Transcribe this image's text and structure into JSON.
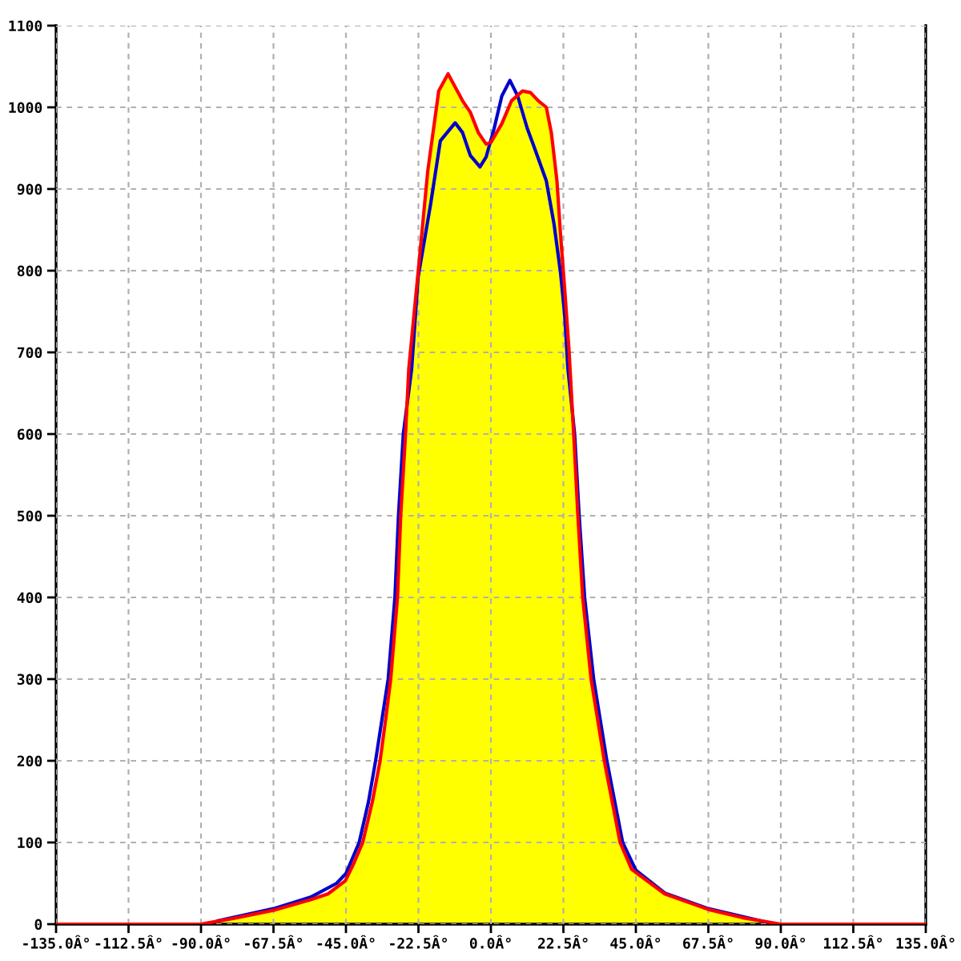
{
  "chart_data": {
    "type": "area",
    "xlim": [
      -135,
      135
    ],
    "xticks": [
      {
        "value": -135,
        "label": "-135.0Â°"
      },
      {
        "value": -112.5,
        "label": "-112.5Â°"
      },
      {
        "value": -90,
        "label": "-90.0Â°"
      },
      {
        "value": -67.5,
        "label": "-67.5Â°"
      },
      {
        "value": -45,
        "label": "-45.0Â°"
      },
      {
        "value": -22.5,
        "label": "-22.5Â°"
      },
      {
        "value": 0,
        "label": "0.0Â°"
      },
      {
        "value": 22.5,
        "label": "22.5Â°"
      },
      {
        "value": 45,
        "label": "45.0Â°"
      },
      {
        "value": 67.5,
        "label": "67.5Â°"
      },
      {
        "value": 90,
        "label": "90.0Â°"
      },
      {
        "value": 112.5,
        "label": "112.5Â°"
      },
      {
        "value": 135,
        "label": "135.0Â°"
      }
    ],
    "ylim": [
      0,
      1100
    ],
    "yticks": [
      0,
      100,
      200,
      300,
      400,
      500,
      600,
      700,
      800,
      900,
      1000,
      1100
    ],
    "grid": true,
    "series": [
      {
        "color": "#ffff00",
        "x": [
          -90,
          -80,
          -67.5,
          -56,
          -50.6,
          -45.2,
          -42.5,
          -39.8,
          -36.8,
          -34.4,
          -32.7,
          -31.1,
          -29,
          -28,
          -26.5,
          -25.5,
          -22.6,
          -19.6,
          -16.2,
          -13.3,
          -8.8,
          -6.4,
          -3.9,
          -1.5,
          0,
          3.4,
          6.4,
          9.8,
          12.3,
          14.7,
          17.2,
          18.8,
          20.5,
          21.6,
          22.9,
          24.2,
          25.7,
          27,
          28.5,
          31.1,
          35.2,
          40.1,
          43.7,
          54,
          67.5,
          78,
          90
        ],
        "values": [
          0,
          7,
          17,
          30,
          37,
          53,
          75,
          100,
          150,
          200,
          250,
          300,
          400,
          500,
          600,
          680,
          798,
          922,
          1020,
          1041,
          1008,
          994,
          969,
          955,
          957,
          980,
          1008,
          1020,
          1018,
          1008,
          1000,
          968,
          910,
          845,
          778,
          706,
          600,
          500,
          400,
          300,
          200,
          100,
          67,
          37,
          18,
          8,
          0
        ]
      },
      {
        "type": "line",
        "color": "#0000cc",
        "x": [
          -85,
          -67.5,
          -56,
          -47.9,
          -45,
          -40.9,
          -38,
          -35.8,
          -31.9,
          -29.8,
          -28.7,
          -27.2,
          -24.6,
          -22.6,
          -18.7,
          -15.7,
          -11.1,
          -8.8,
          -6.4,
          -3.4,
          -1.5,
          1,
          3.4,
          5.9,
          8.3,
          11.3,
          13.1,
          17.2,
          19.6,
          21.6,
          22.9,
          23.9,
          26,
          27.4,
          29.1,
          31.9,
          36,
          40.9,
          45,
          54,
          67.5,
          85
        ],
        "values": [
          4,
          19,
          33,
          50,
          62,
          100,
          150,
          200,
          300,
          400,
          500,
          600,
          680,
          792,
          882,
          959,
          981,
          969,
          941,
          927,
          939,
          974,
          1014,
          1033,
          1014,
          974,
          955,
          910,
          857,
          798,
          746,
          680,
          600,
          500,
          400,
          300,
          200,
          100,
          66,
          38,
          19,
          3
        ]
      },
      {
        "type": "line",
        "color": "#ff0000",
        "x": [
          -135,
          -90,
          -80,
          -67.5,
          -56,
          -50.6,
          -45.2,
          -42.5,
          -39.8,
          -36.8,
          -34.4,
          -32.7,
          -31.1,
          -29,
          -28,
          -26.5,
          -25.5,
          -22.6,
          -19.6,
          -16.2,
          -13.3,
          -8.8,
          -6.4,
          -3.9,
          -1.5,
          0,
          3.4,
          6.4,
          9.8,
          12.3,
          14.7,
          17.2,
          18.8,
          20.5,
          21.6,
          22.9,
          24.2,
          25.7,
          27,
          28.5,
          31.1,
          35.2,
          40.1,
          43.7,
          54,
          67.5,
          78,
          90,
          135
        ],
        "values": [
          0,
          0,
          7,
          17,
          30,
          37,
          53,
          75,
          100,
          150,
          200,
          250,
          300,
          400,
          500,
          600,
          680,
          798,
          922,
          1020,
          1041,
          1008,
          994,
          969,
          955,
          957,
          980,
          1008,
          1020,
          1018,
          1008,
          1000,
          968,
          910,
          845,
          778,
          706,
          600,
          500,
          400,
          300,
          200,
          100,
          67,
          37,
          18,
          8,
          0,
          0
        ]
      }
    ]
  }
}
